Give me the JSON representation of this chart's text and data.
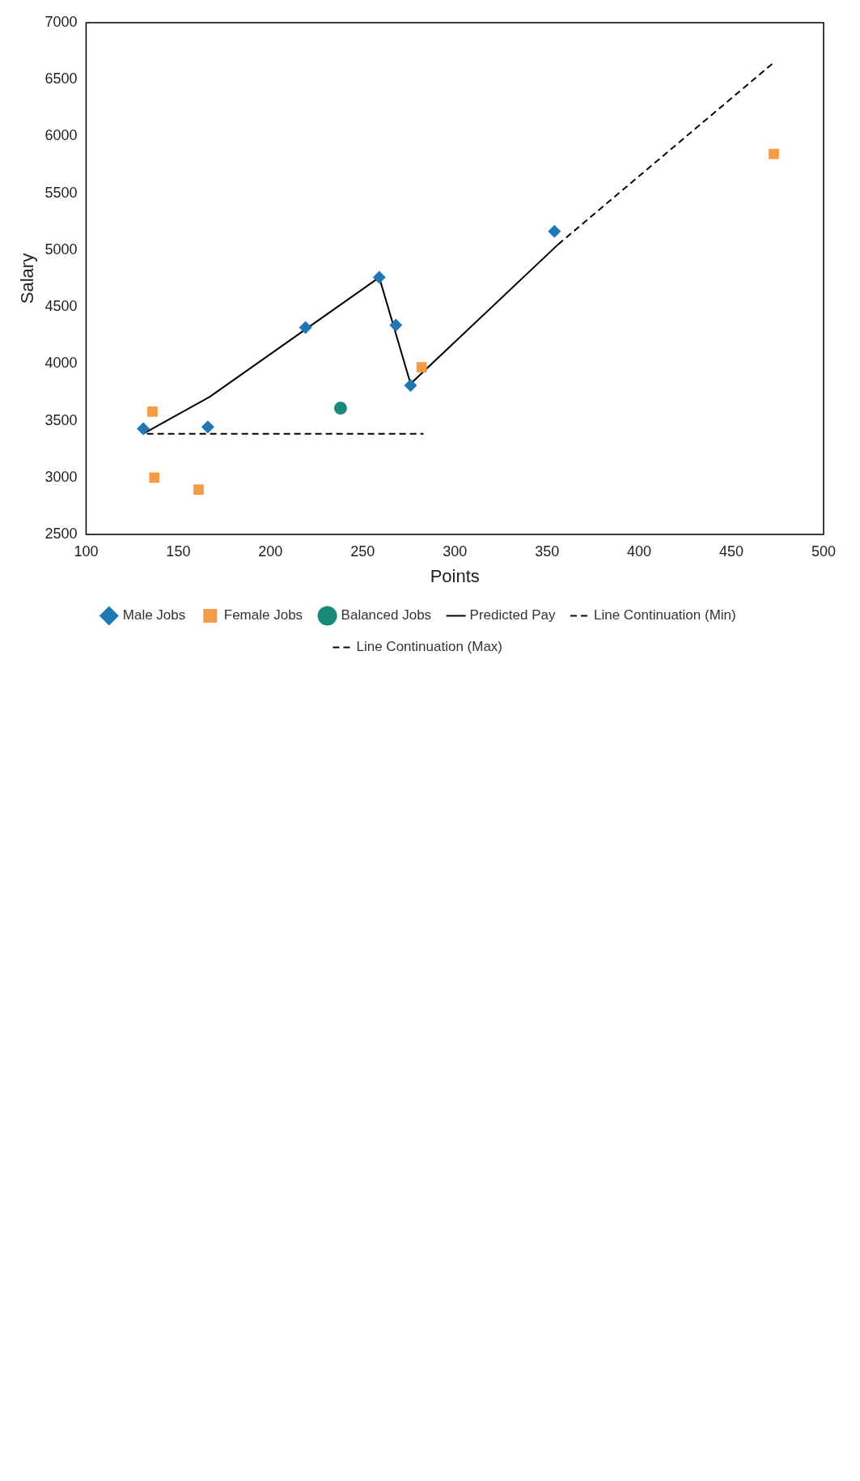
{
  "chart_data": {
    "type": "scatter",
    "xlabel": "Points",
    "ylabel": "Salary",
    "xlim": [
      100,
      500
    ],
    "xticks": [
      100,
      150,
      200,
      250,
      300,
      350,
      400,
      450,
      500
    ],
    "ylim": [
      2500,
      7000
    ],
    "yticks": [
      2500,
      3000,
      3500,
      4000,
      4500,
      5000,
      5500,
      6000,
      6500,
      7000
    ],
    "grid": false,
    "legend": "bottom",
    "series": [
      {
        "name": "Male Jobs",
        "type": "scatter",
        "marker": "diamond",
        "color": "#1f77b4",
        "x": [
          131,
          166,
          219,
          259,
          268,
          276,
          354
        ],
        "values": [
          3430,
          3445,
          4320,
          4760,
          4340,
          3810,
          5165
        ]
      },
      {
        "name": "Female Jobs",
        "type": "scatter",
        "marker": "square",
        "color": "#f39c45",
        "x": [
          136,
          137,
          161,
          282,
          473
        ],
        "values": [
          3580,
          3000,
          2895,
          3970,
          5845
        ]
      },
      {
        "name": "Balanced Jobs",
        "type": "scatter",
        "marker": "circle",
        "color": "#1a8a78",
        "x": [
          238
        ],
        "values": [
          3610
        ]
      },
      {
        "name": "Predicted Pay",
        "type": "line",
        "marker": "none",
        "line_style": "solid",
        "color": "#000000",
        "x": [
          131,
          167,
          259,
          276,
          356
        ],
        "values": [
          3385,
          3710,
          4760,
          3825,
          5050
        ]
      },
      {
        "name": "Line Continuation (Min)",
        "type": "line",
        "marker": "none",
        "line_style": "dashed",
        "color": "#000000",
        "x": [
          133,
          283
        ],
        "values": [
          3385,
          3385
        ]
      },
      {
        "name": "Line Continuation (Max)",
        "type": "line",
        "marker": "none",
        "line_style": "dashed",
        "color": "#000000",
        "x": [
          356,
          473
        ],
        "values": [
          5050,
          6650
        ]
      }
    ]
  }
}
